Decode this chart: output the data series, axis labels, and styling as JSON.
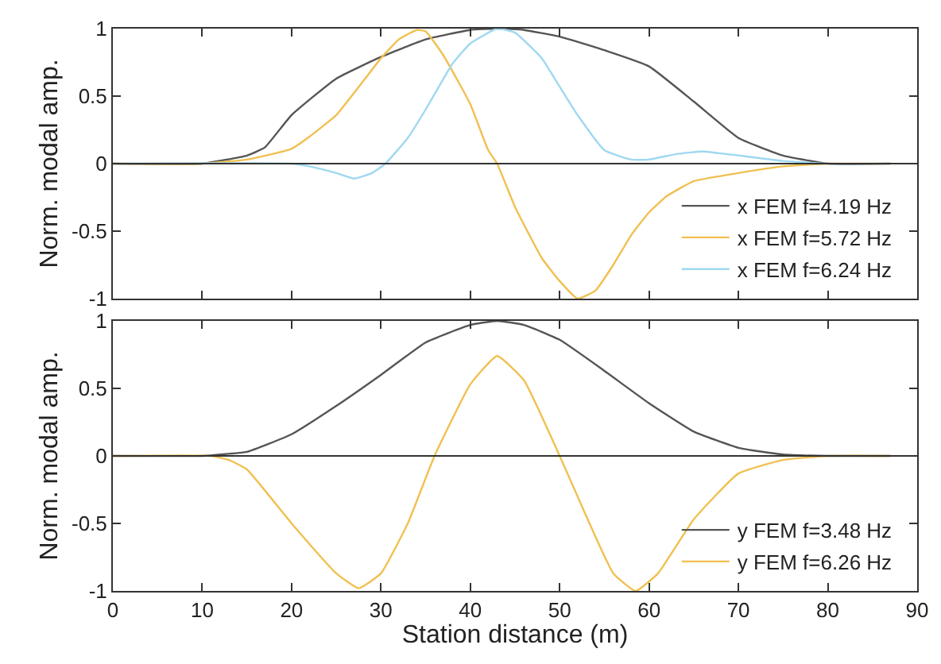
{
  "chart_data": [
    {
      "type": "line",
      "ylabel": "Norm. modal amp.",
      "xlim": [
        0,
        90
      ],
      "xticks": [
        0,
        10,
        20,
        30,
        40,
        50,
        60,
        70,
        80,
        90
      ],
      "ylim": [
        -1,
        1
      ],
      "yticks": [
        -1,
        -0.5,
        0,
        0.5,
        1
      ],
      "tick_labels": "y",
      "legend": "bottom right",
      "marker": "none",
      "line_style": "solid",
      "ref_lines": [
        {
          "axis": "y",
          "value": 0,
          "color": "#333333"
        }
      ],
      "series": [
        {
          "name": "x FEM f=4.19 Hz",
          "color": "#555555",
          "x": [
            0,
            10,
            15,
            17,
            20,
            25,
            30,
            35,
            40,
            43,
            46,
            50,
            55,
            60,
            65,
            70,
            75,
            80,
            87
          ],
          "values": [
            0,
            0,
            0.06,
            0.12,
            0.36,
            0.63,
            0.79,
            0.92,
            0.99,
            1,
            0.99,
            0.94,
            0.84,
            0.72,
            0.46,
            0.19,
            0.06,
            0,
            0
          ]
        },
        {
          "name": "x FEM f=5.72 Hz",
          "color": "#f0c050",
          "x": [
            0,
            10,
            15,
            20,
            22,
            25,
            28,
            30,
            32,
            34,
            35,
            37,
            40,
            42,
            43,
            45,
            48,
            50,
            52,
            54,
            56,
            58,
            60,
            62,
            65,
            70,
            75,
            80,
            87
          ],
          "values": [
            0,
            0,
            0.03,
            0.11,
            0.2,
            0.36,
            0.61,
            0.78,
            0.92,
            0.99,
            0.98,
            0.8,
            0.44,
            0.1,
            0,
            -0.32,
            -0.7,
            -0.87,
            -1,
            -0.94,
            -0.75,
            -0.53,
            -0.36,
            -0.24,
            -0.13,
            -0.07,
            -0.02,
            0,
            0
          ]
        },
        {
          "name": "x FEM f=6.24 Hz",
          "color": "#9fd8f0",
          "x": [
            0,
            20,
            22,
            25,
            27,
            29,
            30.5,
            33,
            35,
            38,
            40,
            43,
            45,
            48,
            50,
            52,
            55,
            58,
            60,
            63,
            66,
            70,
            75,
            80,
            87
          ],
          "values": [
            0,
            0,
            -0.02,
            -0.07,
            -0.11,
            -0.07,
            0,
            0.19,
            0.4,
            0.74,
            0.89,
            1,
            0.97,
            0.78,
            0.57,
            0.36,
            0.1,
            0.03,
            0.03,
            0.07,
            0.09,
            0.06,
            0.02,
            0,
            0
          ]
        }
      ]
    },
    {
      "type": "line",
      "xlabel": "Station distance (m)",
      "ylabel": "Norm. modal amp.",
      "xlim": [
        0,
        90
      ],
      "xticks": [
        0,
        10,
        20,
        30,
        40,
        50,
        60,
        70,
        80,
        90
      ],
      "ylim": [
        -1,
        1
      ],
      "yticks": [
        -1,
        -0.5,
        0,
        0.5,
        1
      ],
      "legend": "bottom right",
      "marker": "none",
      "line_style": "solid",
      "ref_lines": [
        {
          "axis": "y",
          "value": 0,
          "color": "#333333"
        }
      ],
      "series": [
        {
          "name": "y FEM f=3.48 Hz",
          "color": "#555555",
          "x": [
            0,
            10,
            12,
            15,
            20,
            25,
            30,
            35,
            40,
            43,
            46,
            50,
            55,
            60,
            65,
            70,
            75,
            80,
            87
          ],
          "values": [
            0,
            0,
            0.01,
            0.03,
            0.16,
            0.37,
            0.6,
            0.84,
            0.97,
            1,
            0.97,
            0.86,
            0.63,
            0.39,
            0.18,
            0.06,
            0.01,
            0,
            0
          ]
        },
        {
          "name": "y FEM f=6.26 Hz",
          "color": "#f0c050",
          "x": [
            0,
            11,
            13,
            15,
            20,
            25,
            27.5,
            30,
            33,
            36,
            40,
            43,
            46,
            50,
            53,
            56,
            58.5,
            61,
            65,
            70,
            75,
            80,
            87
          ],
          "values": [
            0,
            0,
            -0.03,
            -0.1,
            -0.5,
            -0.87,
            -0.98,
            -0.87,
            -0.5,
            0,
            0.53,
            0.74,
            0.56,
            0,
            -0.45,
            -0.87,
            -1,
            -0.87,
            -0.47,
            -0.13,
            -0.03,
            0,
            0
          ]
        }
      ]
    }
  ]
}
